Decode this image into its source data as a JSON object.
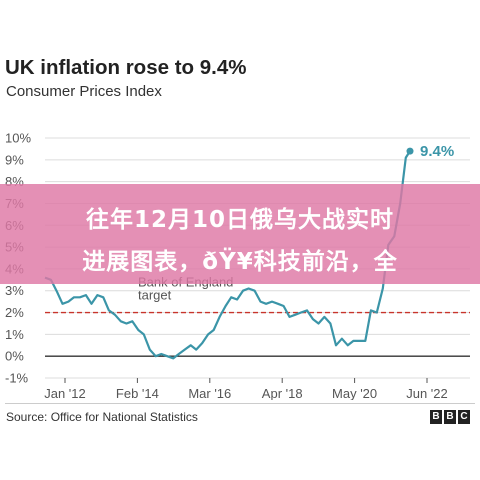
{
  "header": {
    "title": "UK inflation rose to 9.4%",
    "subtitle": "Consumer Prices Index"
  },
  "footer": {
    "source": "Source: Office for National Statistics",
    "logo_letters": [
      "B",
      "B",
      "C"
    ]
  },
  "overlay": {
    "line1": "往年12月10日俄乌大战实时",
    "line2": "进展图表，ðŸ¥科技前沿，全"
  },
  "colors": {
    "series": "#3b95a8",
    "target": "#c8352c",
    "overlay": "#de78a5"
  },
  "chart_data": {
    "type": "line",
    "ylim": [
      -1,
      10
    ],
    "yticks": [
      -1,
      0,
      1,
      2,
      3,
      4,
      5,
      6,
      7,
      8,
      9,
      10
    ],
    "ytick_labels": [
      "-1%",
      "0%",
      "1%",
      "2%",
      "3%",
      "4%",
      "5%",
      "6%",
      "7%",
      "8%",
      "9%",
      "10%"
    ],
    "xticks": [
      "Jan '12",
      "Feb '14",
      "Mar '16",
      "Apr '18",
      "May '20",
      "Jun '22"
    ],
    "x_start": 2012.0,
    "x_end": 2022.45,
    "target_value": 2,
    "target_label": [
      "Bank of England",
      "target"
    ],
    "end_label": "9.4%",
    "series": [
      {
        "x": [
          2012.0,
          2012.17,
          2012.33,
          2012.5,
          2012.67,
          2012.83,
          2013.0,
          2013.17,
          2013.33,
          2013.5,
          2013.67,
          2013.83,
          2014.0,
          2014.17,
          2014.33,
          2014.5,
          2014.67,
          2014.83,
          2015.0,
          2015.17,
          2015.33,
          2015.5,
          2015.67,
          2015.83,
          2016.0,
          2016.17,
          2016.33,
          2016.5,
          2016.67,
          2016.83,
          2017.0,
          2017.17,
          2017.33,
          2017.5,
          2017.67,
          2017.83,
          2018.0,
          2018.17,
          2018.33,
          2018.5,
          2018.67,
          2018.83,
          2019.0,
          2019.17,
          2019.33,
          2019.5,
          2019.67,
          2019.83,
          2020.0,
          2020.17,
          2020.33,
          2020.5,
          2020.67,
          2020.83,
          2021.0,
          2021.17,
          2021.33,
          2021.5,
          2021.67,
          2021.83,
          2022.0,
          2022.17,
          2022.33,
          2022.45
        ],
        "values": [
          3.6,
          3.5,
          3.0,
          2.4,
          2.5,
          2.7,
          2.7,
          2.8,
          2.4,
          2.8,
          2.7,
          2.1,
          1.9,
          1.6,
          1.5,
          1.6,
          1.2,
          1.0,
          0.3,
          0.0,
          0.1,
          0.0,
          -0.1,
          0.1,
          0.3,
          0.5,
          0.3,
          0.6,
          1.0,
          1.2,
          1.8,
          2.3,
          2.7,
          2.6,
          3.0,
          3.1,
          3.0,
          2.5,
          2.4,
          2.5,
          2.4,
          2.3,
          1.8,
          1.9,
          2.0,
          2.1,
          1.7,
          1.5,
          1.8,
          1.5,
          0.5,
          0.8,
          0.5,
          0.7,
          0.7,
          0.7,
          2.1,
          2.0,
          3.1,
          5.1,
          5.5,
          7.0,
          9.1,
          9.4
        ]
      }
    ]
  }
}
